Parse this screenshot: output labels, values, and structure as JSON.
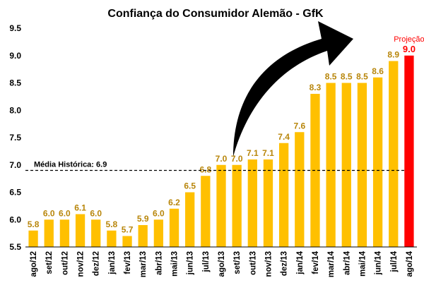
{
  "chart_data": {
    "type": "bar",
    "title": "Confiança do Consumidor Alemão - GfK",
    "categories": [
      "ago/12",
      "set/12",
      "out/12",
      "nov/12",
      "dez/12",
      "jan/13",
      "fev/13",
      "mar/13",
      "abr/13",
      "mai/13",
      "jun/13",
      "jul/13",
      "ago/13",
      "set/13",
      "out/13",
      "nov/13",
      "dez/13",
      "jan/14",
      "fev/14",
      "mar/14",
      "abr/14",
      "mai/14",
      "jun/14",
      "jul/14",
      "ago/14"
    ],
    "values": [
      5.8,
      6.0,
      6.0,
      6.1,
      6.0,
      5.8,
      5.7,
      5.9,
      6.0,
      6.2,
      6.5,
      6.8,
      7.0,
      7.0,
      7.1,
      7.1,
      7.4,
      7.6,
      8.3,
      8.5,
      8.5,
      8.5,
      8.6,
      8.9,
      9.0
    ],
    "data_labels": [
      "5.8",
      "6.0",
      "6.0",
      "6.1",
      "6.0",
      "5.8",
      "5.7",
      "5.9",
      "6.0",
      "6.2",
      "6.5",
      "6.8",
      "7.0",
      "7.0",
      "7.1",
      "7.1",
      "7.4",
      "7.6",
      "8.3",
      "8.5",
      "8.5",
      "8.5",
      "8.6",
      "8.9",
      "9.0"
    ],
    "projection_index": 24,
    "projection_label": "Projeção",
    "yticks": [
      "5.5",
      "6.0",
      "6.5",
      "7.0",
      "7.5",
      "8.0",
      "8.5",
      "9.0",
      "9.5"
    ],
    "ylim": [
      5.5,
      9.5
    ],
    "average": {
      "label": "Média Histórica: 6.9",
      "value": 6.9
    },
    "colors": {
      "bar": "#ffc000",
      "projection": "#ff0000",
      "label": "#b8860b",
      "projection_label": "#ff0000"
    },
    "grid": false,
    "xlabel": "",
    "ylabel": ""
  }
}
